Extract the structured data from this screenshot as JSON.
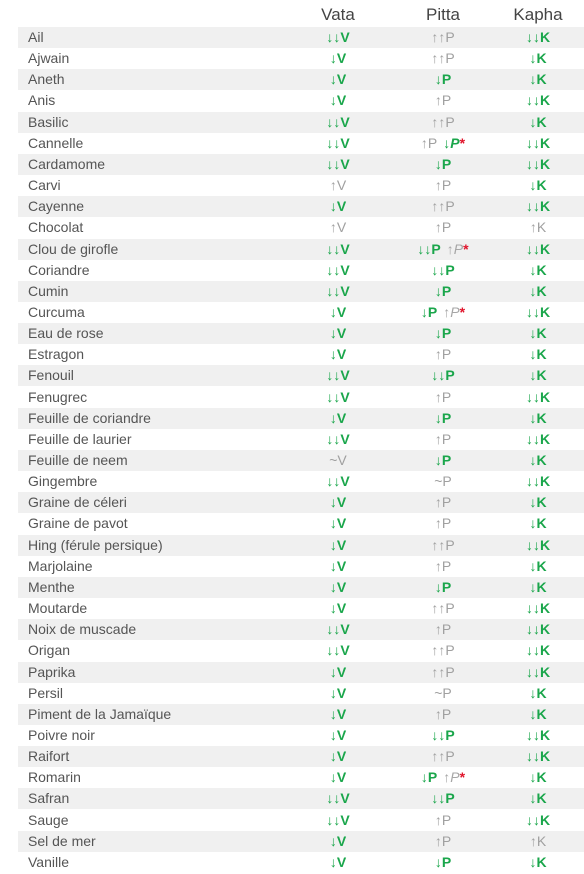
{
  "headers": {
    "vata": "Vata",
    "pitta": "Pitta",
    "kapha": "Kapha"
  },
  "colors": {
    "decrease": "#1aa64b",
    "increase": "#a0a0a0",
    "asterisk": "#e0142b",
    "row_shade": "#f0f0f0"
  },
  "rows": [
    {
      "name": "Ail",
      "vata": "↓↓V",
      "vt": "dec",
      "pitta": "↑↑P",
      "pt": "inc",
      "kapha": "↓↓K",
      "kt": "dec"
    },
    {
      "name": "Ajwain",
      "vata": "↓V",
      "vt": "dec",
      "pitta": "↑↑P",
      "pt": "inc",
      "kapha": "↓K",
      "kt": "dec"
    },
    {
      "name": "Aneth",
      "vata": "↓V",
      "vt": "dec",
      "pitta": "↓P",
      "pt": "dec",
      "kapha": "↓K",
      "kt": "dec"
    },
    {
      "name": "Anis",
      "vata": "↓V",
      "vt": "dec",
      "pitta": "↑P",
      "pt": "inc",
      "kapha": "↓↓K",
      "kt": "dec"
    },
    {
      "name": "Basilic",
      "vata": "↓↓V",
      "vt": "dec",
      "pitta": "↑↑P",
      "pt": "inc",
      "kapha": "↓K",
      "kt": "dec"
    },
    {
      "name": "Cannelle",
      "vata": "↓↓V",
      "vt": "dec",
      "pitta": "↑P",
      "pt": "inc",
      "alt": "↓P",
      "at": "dec",
      "star": "*",
      "kapha": "↓↓K",
      "kt": "dec"
    },
    {
      "name": "Cardamome",
      "vata": "↓↓V",
      "vt": "dec",
      "pitta": "↓P",
      "pt": "dec",
      "kapha": "↓↓K",
      "kt": "dec"
    },
    {
      "name": "Carvi",
      "vata": "↑V",
      "vt": "inc",
      "pitta": "↑P",
      "pt": "inc",
      "kapha": "↓K",
      "kt": "dec"
    },
    {
      "name": "Cayenne",
      "vata": "↓V",
      "vt": "dec",
      "pitta": "↑↑P",
      "pt": "inc",
      "kapha": "↓↓K",
      "kt": "dec"
    },
    {
      "name": "Chocolat",
      "vata": "↑V",
      "vt": "inc",
      "pitta": "↑P",
      "pt": "inc",
      "kapha": "↑K",
      "kt": "inc"
    },
    {
      "name": "Clou de girofle",
      "vata": "↓↓V",
      "vt": "dec",
      "pitta": "↓↓P",
      "pt": "dec",
      "alt": "↑P",
      "at": "inc",
      "star": "*",
      "kapha": "↓↓K",
      "kt": "dec"
    },
    {
      "name": "Coriandre",
      "vata": "↓↓V",
      "vt": "dec",
      "pitta": "↓↓P",
      "pt": "dec",
      "kapha": "↓K",
      "kt": "dec"
    },
    {
      "name": "Cumin",
      "vata": "↓↓V",
      "vt": "dec",
      "pitta": "↓P",
      "pt": "dec",
      "kapha": "↓K",
      "kt": "dec"
    },
    {
      "name": "Curcuma",
      "vata": "↓V",
      "vt": "dec",
      "pitta": "↓P",
      "pt": "dec",
      "alt": "↑P",
      "at": "inc",
      "star": "*",
      "kapha": "↓↓K",
      "kt": "dec"
    },
    {
      "name": "Eau de rose",
      "vata": "↓V",
      "vt": "dec",
      "pitta": "↓P",
      "pt": "dec",
      "kapha": "↓K",
      "kt": "dec"
    },
    {
      "name": "Estragon",
      "vata": "↓V",
      "vt": "dec",
      "pitta": "↑P",
      "pt": "inc",
      "kapha": "↓K",
      "kt": "dec"
    },
    {
      "name": "Fenouil",
      "vata": "↓↓V",
      "vt": "dec",
      "pitta": "↓↓P",
      "pt": "dec",
      "kapha": "↓K",
      "kt": "dec"
    },
    {
      "name": "Fenugrec",
      "vata": "↓↓V",
      "vt": "dec",
      "pitta": "↑P",
      "pt": "inc",
      "kapha": "↓↓K",
      "kt": "dec"
    },
    {
      "name": "Feuille de coriandre",
      "vata": "↓V",
      "vt": "dec",
      "pitta": "↓P",
      "pt": "dec",
      "kapha": "↓K",
      "kt": "dec"
    },
    {
      "name": "Feuille de laurier",
      "vata": "↓↓V",
      "vt": "dec",
      "pitta": "↑P",
      "pt": "inc",
      "kapha": "↓↓K",
      "kt": "dec"
    },
    {
      "name": "Feuille de neem",
      "vata": "~V",
      "vt": "inc",
      "pitta": "↓P",
      "pt": "dec",
      "kapha": "↓K",
      "kt": "dec"
    },
    {
      "name": "Gingembre",
      "vata": "↓↓V",
      "vt": "dec",
      "pitta": "~P",
      "pt": "inc",
      "kapha": "↓↓K",
      "kt": "dec"
    },
    {
      "name": "Graine de céleri",
      "vata": "↓V",
      "vt": "dec",
      "pitta": "↑P",
      "pt": "inc",
      "kapha": "↓K",
      "kt": "dec"
    },
    {
      "name": "Graine de pavot",
      "vata": "↓V",
      "vt": "dec",
      "pitta": "↑P",
      "pt": "inc",
      "kapha": "↓K",
      "kt": "dec"
    },
    {
      "name": "Hing (férule persique)",
      "vata": "↓V",
      "vt": "dec",
      "pitta": "↑↑P",
      "pt": "inc",
      "kapha": "↓↓K",
      "kt": "dec"
    },
    {
      "name": "Marjolaine",
      "vata": "↓V",
      "vt": "dec",
      "pitta": "↑P",
      "pt": "inc",
      "kapha": "↓K",
      "kt": "dec"
    },
    {
      "name": "Menthe",
      "vata": "↓V",
      "vt": "dec",
      "pitta": "↓P",
      "pt": "dec",
      "kapha": "↓K",
      "kt": "dec"
    },
    {
      "name": "Moutarde",
      "vata": "↓V",
      "vt": "dec",
      "pitta": "↑↑P",
      "pt": "inc",
      "kapha": "↓↓K",
      "kt": "dec"
    },
    {
      "name": "Noix de muscade",
      "vata": "↓↓V",
      "vt": "dec",
      "pitta": "↑P",
      "pt": "inc",
      "kapha": "↓↓K",
      "kt": "dec"
    },
    {
      "name": "Origan",
      "vata": "↓↓V",
      "vt": "dec",
      "pitta": "↑↑P",
      "pt": "inc",
      "kapha": "↓↓K",
      "kt": "dec"
    },
    {
      "name": "Paprika",
      "vata": "↓V",
      "vt": "dec",
      "pitta": "↑↑P",
      "pt": "inc",
      "kapha": "↓↓K",
      "kt": "dec"
    },
    {
      "name": "Persil",
      "vata": "↓V",
      "vt": "dec",
      "pitta": "~P",
      "pt": "inc",
      "kapha": "↓K",
      "kt": "dec"
    },
    {
      "name": "Piment de la Jamaïque",
      "vata": "↓V",
      "vt": "dec",
      "pitta": "↑P",
      "pt": "inc",
      "kapha": "↓K",
      "kt": "dec"
    },
    {
      "name": "Poivre noir",
      "vata": "↓V",
      "vt": "dec",
      "pitta": "↓↓P",
      "pt": "dec",
      "kapha": "↓↓K",
      "kt": "dec"
    },
    {
      "name": "Raifort",
      "vata": "↓V",
      "vt": "dec",
      "pitta": "↑↑P",
      "pt": "inc",
      "kapha": "↓↓K",
      "kt": "dec"
    },
    {
      "name": "Romarin",
      "vata": "↓V",
      "vt": "dec",
      "pitta": "↓P",
      "pt": "dec",
      "alt": "↑P",
      "at": "inc",
      "star": "*",
      "kapha": "↓K",
      "kt": "dec"
    },
    {
      "name": "Safran",
      "vata": "↓↓V",
      "vt": "dec",
      "pitta": "↓↓P",
      "pt": "dec",
      "kapha": "↓K",
      "kt": "dec"
    },
    {
      "name": "Sauge",
      "vata": "↓↓V",
      "vt": "dec",
      "pitta": "↑P",
      "pt": "inc",
      "kapha": "↓↓K",
      "kt": "dec"
    },
    {
      "name": "Sel de mer",
      "vata": "↓V",
      "vt": "dec",
      "pitta": "↑P",
      "pt": "inc",
      "kapha": "↑K",
      "kt": "inc"
    },
    {
      "name": "Vanille",
      "vata": "↓V",
      "vt": "dec",
      "pitta": "↓P",
      "pt": "dec",
      "kapha": "↓K",
      "kt": "dec"
    }
  ]
}
